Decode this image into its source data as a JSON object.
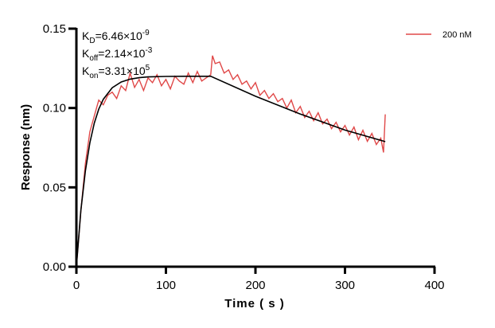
{
  "chart_data": {
    "type": "line",
    "xlabel": "Time ( s )",
    "ylabel": "Response (nm)",
    "xlim": [
      0,
      400
    ],
    "ylim": [
      0,
      0.15
    ],
    "xticks": [
      "0",
      "100",
      "200",
      "300",
      "400"
    ],
    "yticks": [
      "0.00",
      "0.05",
      "0.10",
      "0.15"
    ],
    "grid": false,
    "legend_position": "top-right",
    "annotations": [
      {
        "base": "K",
        "sub": "D",
        "value": "=6.46×10",
        "exp": "-9"
      },
      {
        "base": "K",
        "sub": "off",
        "value": "=2.14×10",
        "exp": "-3"
      },
      {
        "base": "K",
        "sub": "on",
        "value": "=3.31×10",
        "exp": "5"
      }
    ],
    "series": [
      {
        "name": "200 nM",
        "color": "#e04848",
        "x": [
          0,
          5,
          10,
          15,
          20,
          25,
          30,
          35,
          40,
          45,
          50,
          55,
          60,
          65,
          70,
          75,
          80,
          85,
          90,
          95,
          100,
          105,
          110,
          115,
          120,
          125,
          130,
          135,
          140,
          145,
          150,
          152,
          155,
          160,
          165,
          170,
          175,
          180,
          185,
          190,
          195,
          200,
          205,
          210,
          215,
          220,
          225,
          230,
          235,
          240,
          245,
          250,
          255,
          260,
          265,
          270,
          275,
          280,
          285,
          290,
          295,
          300,
          305,
          310,
          315,
          320,
          325,
          330,
          335,
          340,
          343,
          345
        ],
        "y": [
          0.0,
          0.035,
          0.065,
          0.085,
          0.095,
          0.105,
          0.102,
          0.108,
          0.11,
          0.106,
          0.114,
          0.111,
          0.122,
          0.113,
          0.118,
          0.111,
          0.119,
          0.116,
          0.121,
          0.114,
          0.118,
          0.112,
          0.12,
          0.117,
          0.115,
          0.122,
          0.116,
          0.123,
          0.117,
          0.119,
          0.121,
          0.133,
          0.128,
          0.129,
          0.122,
          0.124,
          0.118,
          0.121,
          0.115,
          0.117,
          0.112,
          0.116,
          0.108,
          0.111,
          0.106,
          0.109,
          0.104,
          0.106,
          0.1,
          0.105,
          0.097,
          0.101,
          0.094,
          0.098,
          0.092,
          0.097,
          0.09,
          0.093,
          0.087,
          0.091,
          0.085,
          0.089,
          0.083,
          0.088,
          0.08,
          0.086,
          0.079,
          0.084,
          0.077,
          0.081,
          0.072,
          0.096
        ]
      },
      {
        "color": "#000000",
        "x": [
          0,
          5,
          10,
          15,
          20,
          25,
          30,
          40,
          50,
          60,
          70,
          80,
          100,
          120,
          150,
          200,
          250,
          300,
          345
        ],
        "y": [
          0,
          0.0354,
          0.0604,
          0.078,
          0.0905,
          0.0993,
          0.1055,
          0.1128,
          0.1164,
          0.1182,
          0.1191,
          0.1196,
          0.1199,
          0.12,
          0.12,
          0.1074,
          0.0962,
          0.0861,
          0.0788
        ]
      }
    ]
  }
}
